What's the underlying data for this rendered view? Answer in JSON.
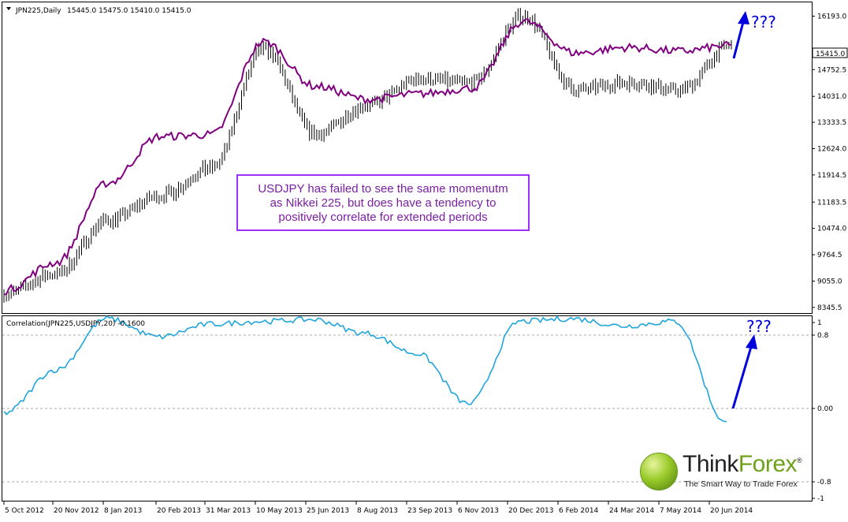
{
  "header": {
    "symbol": "JPN225,Daily",
    "ohlc": "15445.0 15475.0 15410.0 15415.0",
    "last_price": "15415.0"
  },
  "price_axis": [
    "16193.0",
    "15415.0",
    "14752.5",
    "14031.0",
    "13333.5",
    "12624.0",
    "11914.5",
    "11183.5",
    "10474.0",
    "9764.5",
    "9055.0",
    "8345.5"
  ],
  "indicator": {
    "label": "Correlation(JPN225,USDJPY,20) -0.1600",
    "axis": [
      "1",
      "0.8",
      "0.00",
      "-0.8",
      "-1"
    ],
    "levels": [
      0.8,
      0.0,
      -0.8
    ]
  },
  "date_axis": [
    "5 Oct 2012",
    "20 Nov 2012",
    "8 Jan 2013",
    "20 Feb 2013",
    "31 Mar 2013",
    "10 May 2013",
    "25 Jun 2013",
    "8 Aug 2013",
    "23 Sep 2013",
    "6 Nov 2013",
    "20 Dec 2013",
    "6 Feb 2014",
    "24 Mar 2014",
    "7 May 2014",
    "20 Jun 2014"
  ],
  "annotations": {
    "question_top": "???",
    "question_bottom": "???",
    "note_line1": "USDJPY has failed to see the same momenutm",
    "note_line2": "as Nikkei 225, but does have a tendency to",
    "note_line3": "positively correlate for extended periods"
  },
  "logo": {
    "name_a": "Think",
    "name_b": "Forex",
    "registered": "®",
    "tagline": "The Smart Way to Trade Forex"
  },
  "colors": {
    "price_bars": "#000000",
    "usdjpy_line": "#800080",
    "correlation_line": "#1fa5dc",
    "arrow": "#0000dd",
    "annotation_border": "#9b30ff",
    "annotation_text": "#7b1fa2"
  },
  "chart_data": [
    {
      "type": "line",
      "title": "JPN225,Daily",
      "x": [
        "5 Oct 2012",
        "20 Nov 2012",
        "8 Jan 2013",
        "20 Feb 2013",
        "31 Mar 2013",
        "10 May 2013",
        "25 Jun 2013",
        "8 Aug 2013",
        "23 Sep 2013",
        "6 Nov 2013",
        "20 Dec 2013",
        "6 Feb 2014",
        "24 Mar 2014",
        "7 May 2014",
        "20 Jun 2014"
      ],
      "series": [
        {
          "values": [
            8700,
            9250,
            10700,
            11350,
            12100,
            15300,
            13000,
            13800,
            14500,
            14400,
            16200,
            14200,
            14400,
            14200,
            15400
          ]
        },
        {
          "values": [
            8800,
            9550,
            11700,
            12950,
            13000,
            15500,
            14300,
            13950,
            14100,
            14250,
            16050,
            15200,
            15350,
            15250,
            15400
          ]
        }
      ],
      "ylim": [
        8345.5,
        16500
      ]
    },
    {
      "type": "line",
      "title": "Correlation(JPN225,USDJPY,20) -0.1600",
      "x": [
        "5 Oct 2012",
        "20 Nov 2012",
        "8 Jan 2013",
        "20 Feb 2013",
        "31 Mar 2013",
        "10 May 2013",
        "25 Jun 2013",
        "8 Aug 2013",
        "23 Sep 2013",
        "6 Nov 2013",
        "20 Dec 2013",
        "6 Feb 2014",
        "24 Mar 2014",
        "7 May 2014",
        "20 Jun 2014"
      ],
      "series": [
        {
          "values": [
            -0.05,
            0.42,
            0.98,
            0.78,
            0.92,
            0.95,
            0.97,
            0.82,
            0.6,
            0.05,
            0.95,
            0.98,
            0.9,
            0.95,
            -0.16
          ]
        }
      ],
      "ylim": [
        -1,
        1
      ]
    }
  ]
}
